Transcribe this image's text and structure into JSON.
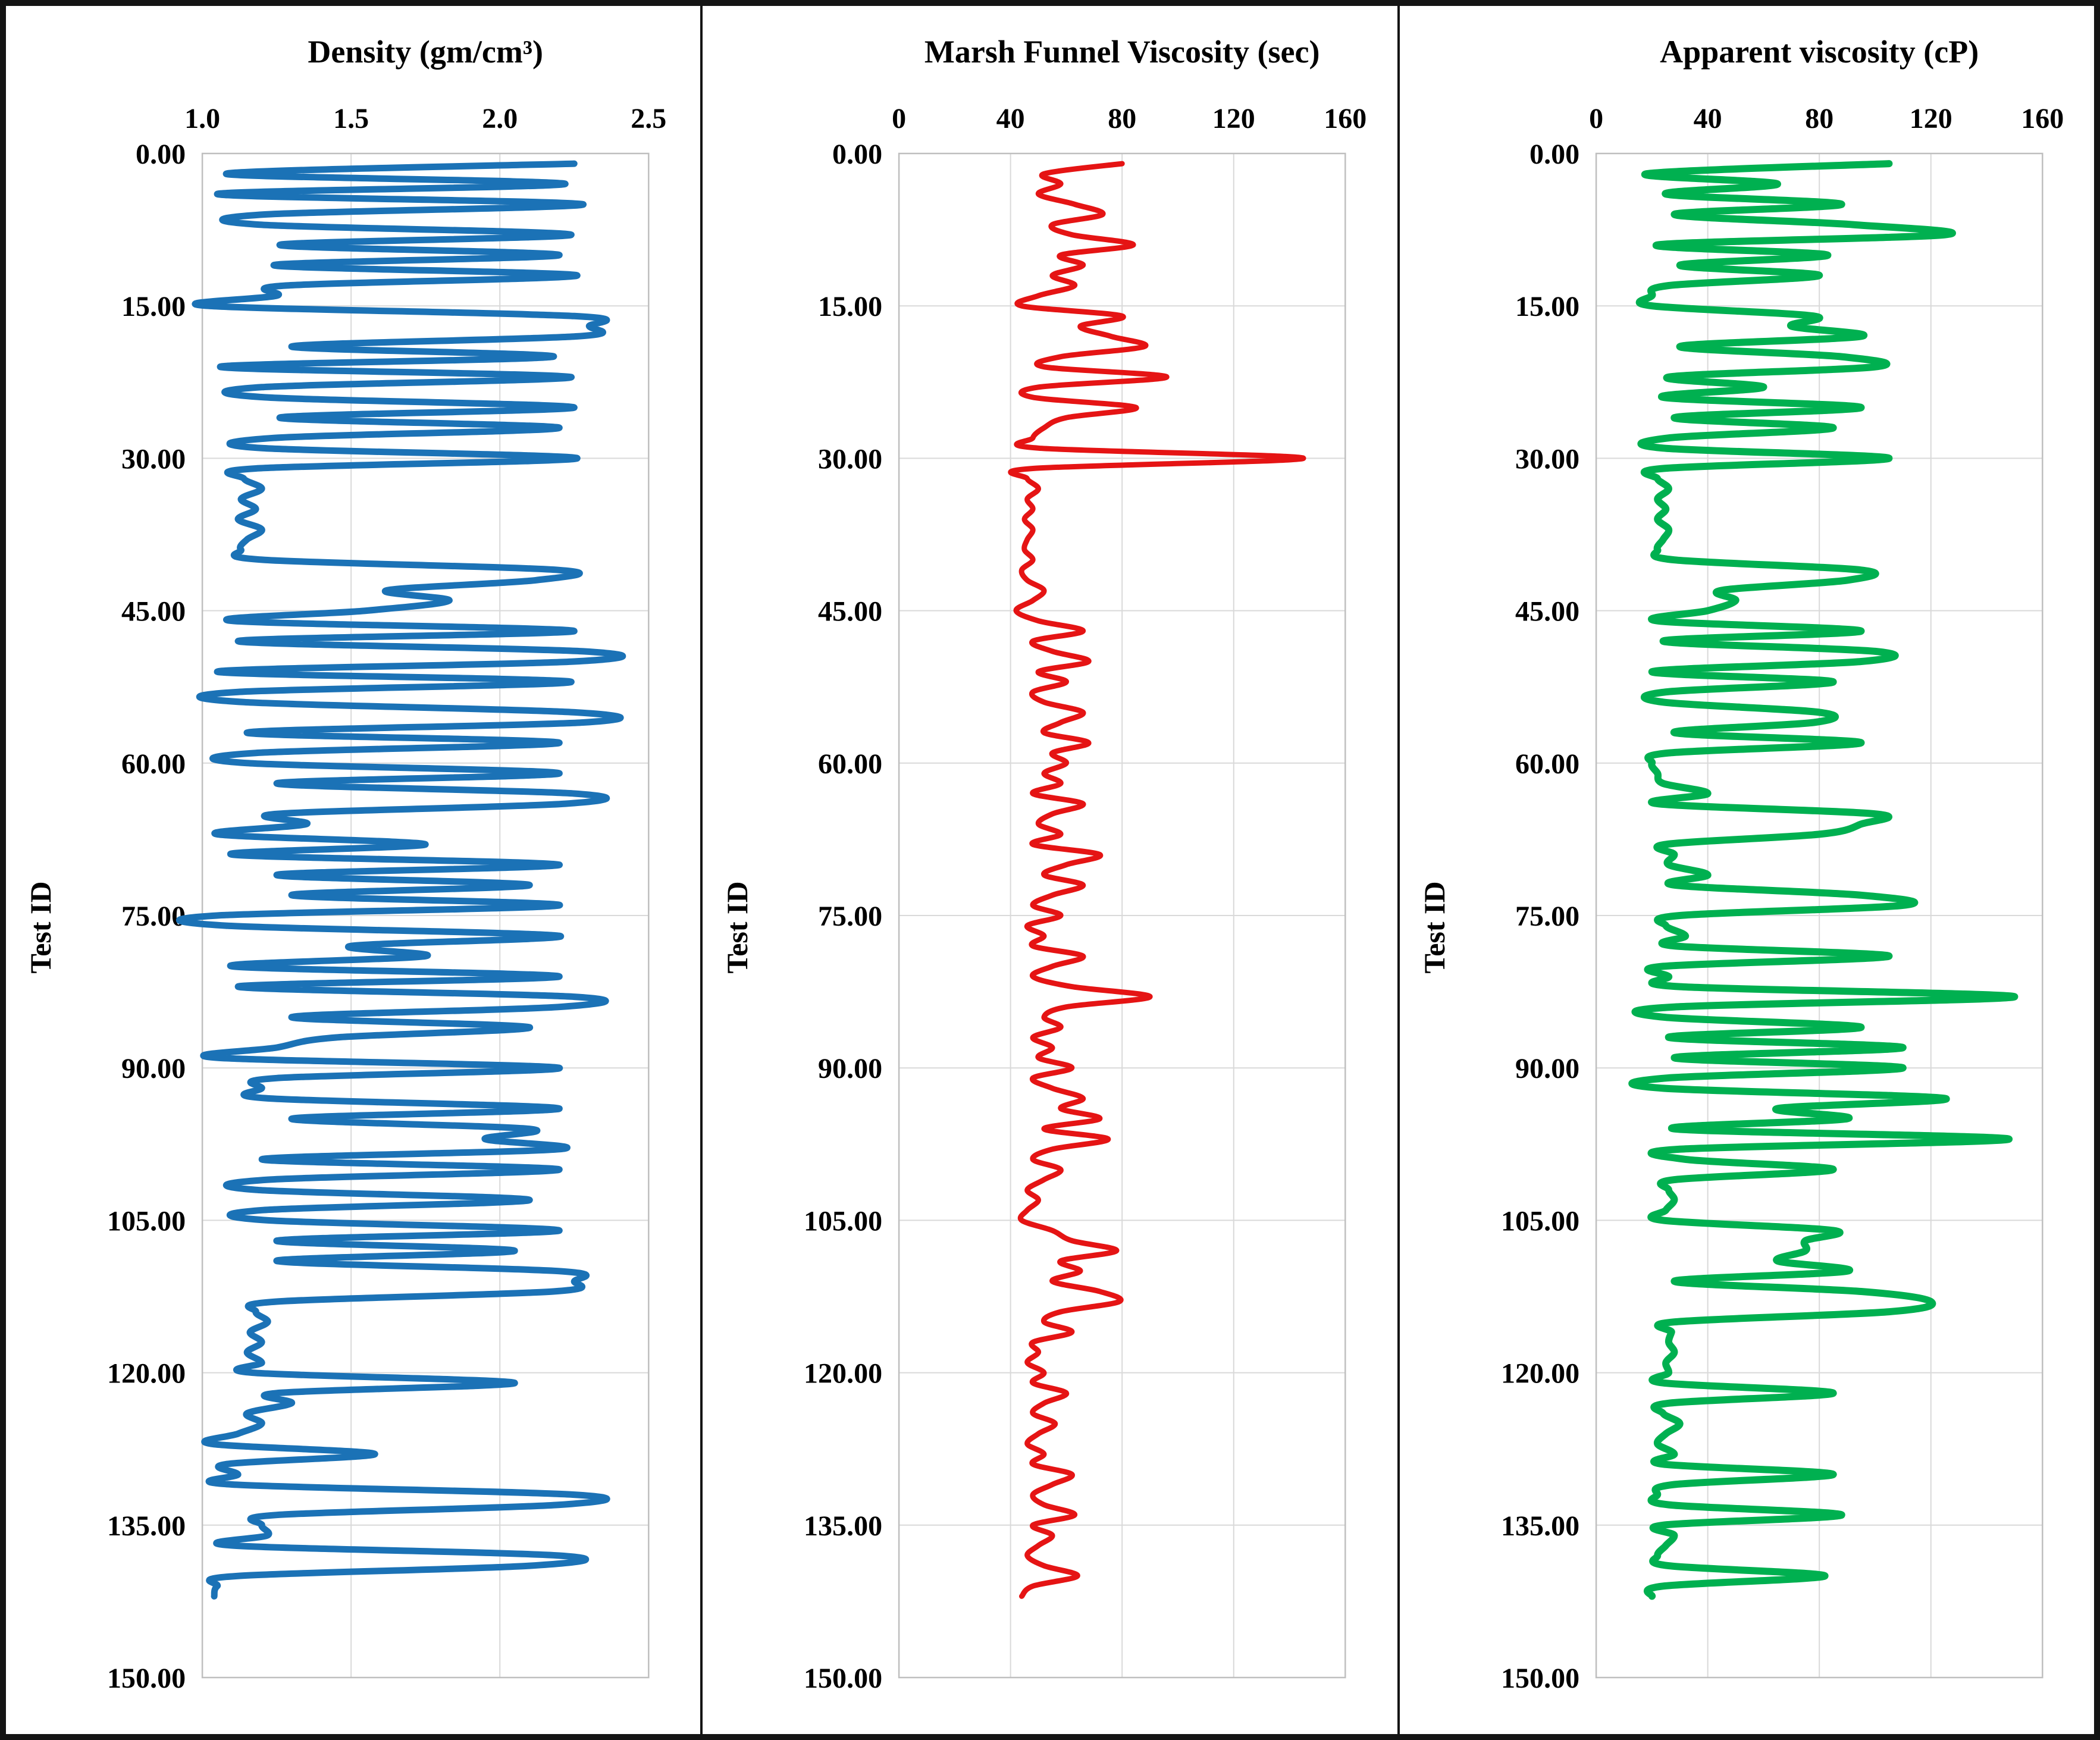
{
  "figure": {
    "ylabel": "Test ID",
    "ytick_labels": [
      "0.00",
      "15.00",
      "30.00",
      "45.00",
      "60.00",
      "75.00",
      "90.00",
      "105.00",
      "120.00",
      "135.00",
      "150.00"
    ],
    "panels": [
      {
        "title": "Density (gm/cm³)",
        "xtick_labels": [
          "1.0",
          "1.5",
          "2.0",
          "2.5"
        ]
      },
      {
        "title": "Marsh Funnel Viscosity (sec)",
        "xtick_labels": [
          "0",
          "40",
          "80",
          "120",
          "160"
        ]
      },
      {
        "title": "Apparent viscosity (cP)",
        "xtick_labels": [
          "0",
          "40",
          "80",
          "120",
          "160"
        ]
      }
    ]
  },
  "chart_data": [
    {
      "type": "line",
      "name": "density",
      "title": "Density (gm/cm³)",
      "ylabel": "Test ID",
      "color": "#1b72b6",
      "stroke_width": 11,
      "xlim": [
        1.0,
        2.5
      ],
      "xticks": [
        1.0,
        1.5,
        2.0,
        2.5
      ],
      "ylim": [
        0,
        150
      ],
      "yticks": [
        0,
        15,
        30,
        45,
        60,
        75,
        90,
        105,
        120,
        135,
        150
      ],
      "x_axis_position": "top",
      "y_inverted": true,
      "test_id_start": 1,
      "test_id_step": 1,
      "values": [
        2.25,
        1.08,
        2.22,
        1.05,
        2.28,
        1.21,
        1.19,
        2.24,
        1.26,
        2.2,
        1.24,
        2.26,
        1.28,
        1.25,
        1.02,
        2.25,
        2.3,
        2.26,
        1.3,
        2.18,
        1.06,
        2.24,
        1.2,
        1.21,
        2.25,
        1.26,
        2.2,
        1.24,
        1.2,
        2.26,
        1.18,
        1.14,
        1.2,
        1.13,
        1.18,
        1.12,
        1.2,
        1.15,
        1.13,
        1.21,
        2.2,
        2.12,
        1.62,
        1.83,
        1.55,
        1.1,
        2.25,
        1.12,
        2.28,
        2.25,
        1.05,
        2.24,
        1.12,
        1.14,
        2.25,
        2.28,
        1.15,
        2.2,
        1.18,
        1.15,
        2.2,
        1.25,
        2.25,
        2.22,
        1.25,
        1.35,
        1.05,
        1.75,
        1.1,
        2.2,
        1.25,
        2.1,
        1.3,
        2.2,
        1.05,
        1.08,
        2.2,
        1.5,
        1.75,
        1.1,
        2.2,
        1.12,
        2.25,
        2.2,
        1.3,
        2.1,
        1.45,
        1.25,
        1.05,
        2.2,
        1.25,
        1.2,
        1.22,
        2.2,
        1.3,
        2.1,
        1.95,
        2.2,
        1.2,
        2.2,
        1.22,
        1.18,
        2.1,
        1.2,
        1.22,
        2.2,
        1.25,
        2.05,
        1.25,
        2.2,
        2.25,
        2.18,
        1.25,
        1.18,
        1.22,
        1.16,
        1.2,
        1.15,
        1.2,
        1.17,
        2.05,
        1.25,
        1.3,
        1.15,
        1.2,
        1.12,
        1.03,
        1.58,
        1.08,
        1.12,
        1.1,
        2.25,
        2.2,
        1.25,
        1.2,
        1.22,
        1.1,
        2.2,
        2.1,
        1.12,
        1.05,
        1.04
      ]
    },
    {
      "type": "line",
      "name": "marsh-funnel-viscosity",
      "title": "Marsh Funnel Viscosity (sec)",
      "ylabel": "Test ID",
      "color": "#e51414",
      "stroke_width": 9,
      "xlim": [
        0,
        160
      ],
      "xticks": [
        0,
        40,
        80,
        120,
        160
      ],
      "ylim": [
        0,
        150
      ],
      "yticks": [
        0,
        15,
        30,
        45,
        60,
        75,
        90,
        105,
        120,
        135,
        150
      ],
      "x_axis_position": "top",
      "y_inverted": true,
      "test_id_start": 1,
      "test_id_step": 1,
      "values": [
        80,
        52,
        58,
        50,
        63,
        73,
        55,
        62,
        84,
        58,
        66,
        55,
        63,
        50,
        44,
        80,
        65,
        76,
        88,
        58,
        52,
        96,
        50,
        48,
        85,
        60,
        52,
        48,
        50,
        145,
        48,
        46,
        50,
        46,
        48,
        45,
        48,
        46,
        45,
        48,
        44,
        46,
        52,
        48,
        42,
        50,
        66,
        48,
        55,
        68,
        50,
        60,
        48,
        52,
        66,
        58,
        52,
        68,
        55,
        60,
        52,
        58,
        48,
        66,
        55,
        50,
        58,
        48,
        72,
        60,
        52,
        66,
        55,
        48,
        58,
        46,
        52,
        48,
        66,
        55,
        48,
        62,
        90,
        60,
        52,
        58,
        48,
        55,
        50,
        62,
        48,
        55,
        66,
        58,
        72,
        52,
        75,
        55,
        48,
        58,
        52,
        46,
        50,
        46,
        44,
        55,
        62,
        78,
        58,
        65,
        55,
        72,
        79,
        58,
        52,
        62,
        48,
        50,
        46,
        52,
        48,
        60,
        52,
        48,
        56,
        50,
        46,
        52,
        48,
        62,
        55,
        48,
        52,
        63,
        48,
        55,
        50,
        46,
        52,
        64,
        48,
        44
      ]
    },
    {
      "type": "line",
      "name": "apparent-viscosity",
      "title": "Apparent viscosity (cP)",
      "ylabel": "Test ID",
      "color": "#00b050",
      "stroke_width": 12,
      "xlim": [
        0,
        160
      ],
      "xticks": [
        0,
        40,
        80,
        120,
        160
      ],
      "ylim": [
        0,
        150
      ],
      "yticks": [
        0,
        15,
        30,
        45,
        60,
        75,
        90,
        105,
        120,
        135,
        150
      ],
      "x_axis_position": "top",
      "y_inverted": true,
      "test_id_start": 1,
      "test_id_step": 1,
      "values": [
        105,
        18,
        65,
        25,
        88,
        28,
        92,
        125,
        22,
        83,
        30,
        80,
        26,
        20,
        20,
        78,
        70,
        95,
        30,
        88,
        100,
        26,
        60,
        24,
        95,
        28,
        85,
        26,
        24,
        105,
        24,
        22,
        26,
        22,
        25,
        22,
        26,
        24,
        22,
        28,
        95,
        90,
        45,
        50,
        40,
        22,
        95,
        24,
        100,
        95,
        20,
        85,
        25,
        24,
        80,
        78,
        28,
        95,
        26,
        20,
        22,
        24,
        40,
        22,
        100,
        95,
        80,
        25,
        28,
        26,
        40,
        28,
        95,
        110,
        30,
        25,
        32,
        28,
        105,
        24,
        26,
        30,
        150,
        28,
        24,
        95,
        26,
        110,
        28,
        110,
        25,
        24,
        125,
        65,
        90,
        28,
        148,
        30,
        32,
        85,
        28,
        26,
        28,
        25,
        24,
        85,
        75,
        75,
        65,
        90,
        28,
        95,
        120,
        105,
        28,
        27,
        26,
        28,
        25,
        26,
        24,
        85,
        26,
        24,
        30,
        25,
        22,
        28,
        24,
        85,
        28,
        22,
        26,
        88,
        24,
        28,
        25,
        22,
        26,
        82,
        24,
        20
      ]
    }
  ]
}
